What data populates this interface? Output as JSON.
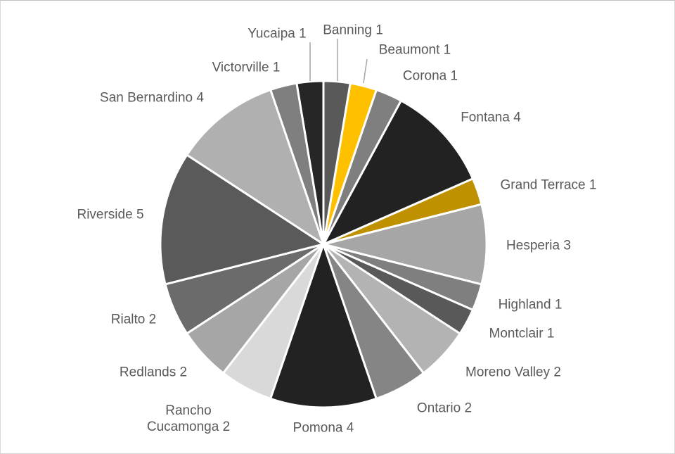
{
  "chart_data": {
    "type": "pie",
    "categories": [
      "Banning",
      "Beaumont",
      "Corona",
      "Fontana",
      "Grand Terrace",
      "Hesperia",
      "Highland",
      "Montclair",
      "Moreno Valley",
      "Ontario",
      "Pomona",
      "Rancho Cucamonga",
      "Redlands",
      "Rialto",
      "Riverside",
      "San Bernardino",
      "Victorville",
      "Yucaipa"
    ],
    "values": [
      1,
      1,
      1,
      4,
      1,
      3,
      1,
      1,
      2,
      2,
      4,
      2,
      2,
      2,
      5,
      4,
      1,
      1
    ],
    "colors": [
      "#595959",
      "#ffc000",
      "#7f7f7f",
      "#222222",
      "#bf9000",
      "#a6a6a6",
      "#7f7f7f",
      "#595959",
      "#b3b3b3",
      "#858585",
      "#222222",
      "#d9d9d9",
      "#a6a6a6",
      "#6b6b6b",
      "#5a5a5a",
      "#b0b0b0",
      "#7f7f7f",
      "#262626"
    ]
  }
}
